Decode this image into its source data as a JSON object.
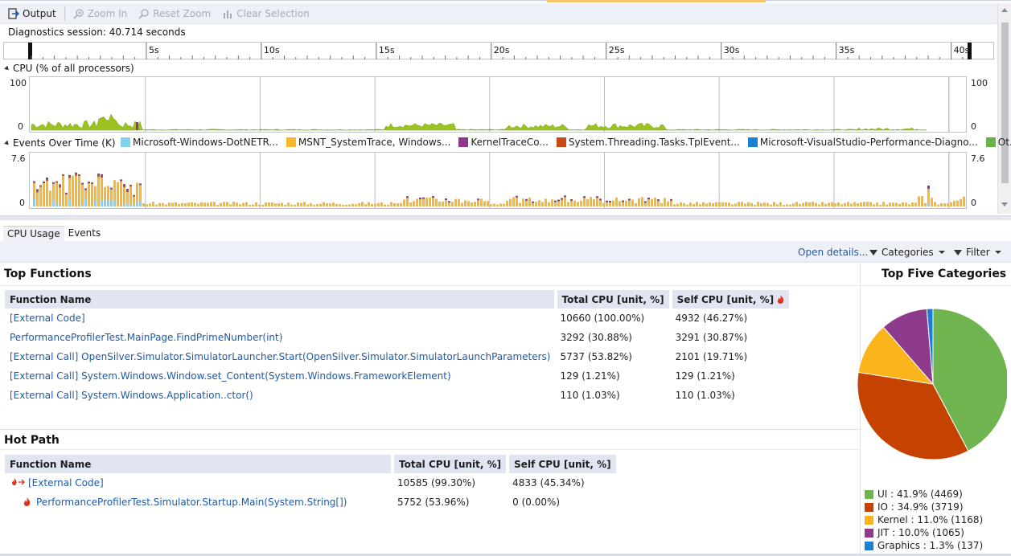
{
  "toolbar": {
    "output_label": "Output",
    "zoom_in_label": "Zoom In",
    "reset_zoom_label": "Reset Zoom",
    "clear_selection_label": "Clear Selection"
  },
  "session": {
    "label": "Diagnostics session: 40.714 seconds"
  },
  "ruler": {
    "ticks": [
      "5s",
      "10s",
      "15s",
      "20s",
      "25s",
      "30s",
      "35s",
      "40s"
    ]
  },
  "cpu_graph": {
    "label": "CPU (% of all processors)",
    "max_label": "100",
    "min_label": "0",
    "color": "#9bc21e"
  },
  "events_graph": {
    "label": "Events Over Time (K)",
    "max_label": "7.6",
    "min_label": "0",
    "legend": [
      {
        "name": "Microsoft-Windows-DotNETR...",
        "color": "#7fd3ef"
      },
      {
        "name": "MSNT_SystemTrace, Windows...",
        "color": "#f8b72c"
      },
      {
        "name": "KernelTraceCo...",
        "color": "#8e3a8c"
      },
      {
        "name": "System.Threading.Tasks.TplEvent...",
        "color": "#c94a12"
      },
      {
        "name": "Microsoft-VisualStudio-Performance-Diagno...",
        "color": "#1c7fd6"
      },
      {
        "name": "Ot...",
        "color": "#6aaf48"
      }
    ]
  },
  "tabs": {
    "cpu_usage": "CPU Usage",
    "events": "Events"
  },
  "actionbar": {
    "open_details": "Open details...",
    "categories": "Categories",
    "filter": "Filter"
  },
  "top_functions": {
    "title": "Top Functions",
    "headers": [
      "Function Name",
      "Total CPU [unit, %]",
      "Self CPU [unit, %]"
    ],
    "rows": [
      {
        "name": "[External Code]",
        "total": "10660 (100.00%)",
        "self": "4932 (46.27%)"
      },
      {
        "name": "PerformanceProfilerTest.MainPage.FindPrimeNumber(int)",
        "total": "3292 (30.88%)",
        "self": "3291 (30.87%)"
      },
      {
        "name": "[External Call] OpenSilver.Simulator.SimulatorLauncher.Start(OpenSilver.Simulator.SimulatorLaunchParameters)",
        "total": "5737 (53.82%)",
        "self": "2101 (19.71%)"
      },
      {
        "name": "[External Call] System.Windows.Window.set_Content(System.Windows.FrameworkElement)",
        "total": "129 (1.21%)",
        "self": "129 (1.21%)"
      },
      {
        "name": "[External Call] System.Windows.Application..ctor()",
        "total": "110 (1.03%)",
        "self": "110 (1.03%)"
      }
    ]
  },
  "hot_path": {
    "title": "Hot Path",
    "headers": [
      "Function Name",
      "Total CPU [unit, %]",
      "Self CPU [unit, %]"
    ],
    "rows": [
      {
        "name": "[External Code]",
        "total": "10585 (99.30%)",
        "self": "4833 (45.34%)",
        "icon": "hot-path-arrow-icon"
      },
      {
        "name": "PerformanceProfilerTest.Simulator.Startup.Main(System.String[])",
        "total": "5752 (53.96%)",
        "self": "0 (0.00%)",
        "icon": "flame-icon"
      }
    ]
  },
  "top_categories": {
    "title": "Top Five Categories",
    "legend": [
      {
        "label": "UI : 41.9% (4469)",
        "color": "#70b450"
      },
      {
        "label": "IO : 34.9% (3719)",
        "color": "#c54200"
      },
      {
        "label": "Kernel : 11.0% (1168)",
        "color": "#fbb41c"
      },
      {
        "label": "JIT : 10.0% (1065)",
        "color": "#8e3a8c"
      },
      {
        "label": "Graphics : 1.3% (137)",
        "color": "#1c7fd6"
      }
    ]
  },
  "chart_data": {
    "type": "pie",
    "title": "Top Five Categories",
    "categories": [
      "UI",
      "IO",
      "Kernel",
      "JIT",
      "Graphics"
    ],
    "values": [
      41.9,
      34.9,
      11.0,
      10.0,
      1.3
    ],
    "counts": [
      4469,
      3719,
      1168,
      1065,
      137
    ],
    "colors": [
      "#70b450",
      "#c54200",
      "#fbb41c",
      "#8e3a8c",
      "#1c7fd6"
    ]
  }
}
